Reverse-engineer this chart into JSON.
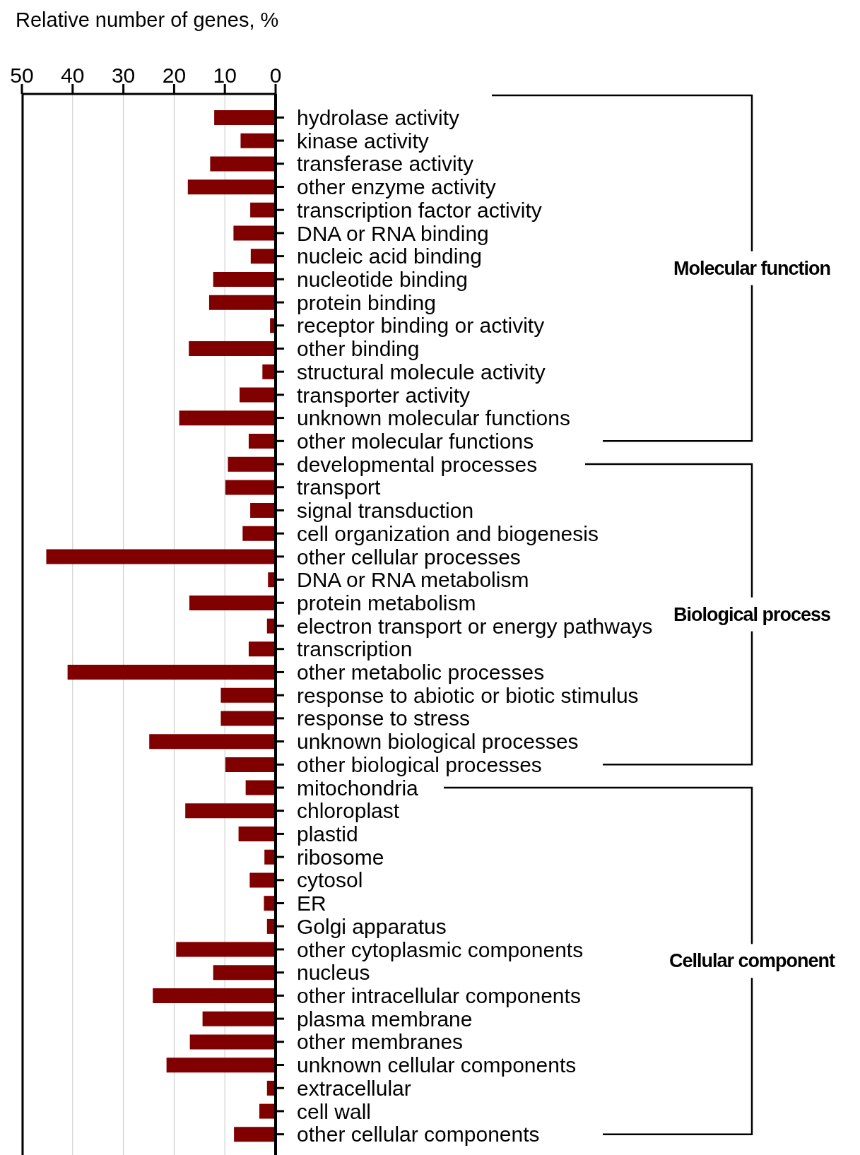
{
  "chart_data": {
    "type": "bar",
    "orientation": "horizontal",
    "xlabel": "Relative number of genes, %",
    "categories": [
      "hydrolase activity",
      "kinase activity",
      "transferase activity",
      "other enzyme activity",
      "transcription factor activity",
      "DNA or RNA binding",
      "nucleic acid binding",
      "nucleotide binding",
      "protein binding",
      "receptor binding or activity",
      "other binding",
      "structural molecule activity",
      "transporter activity",
      "unknown molecular functions",
      "other molecular functions",
      "developmental processes",
      "transport",
      "signal transduction",
      "cell organization and biogenesis",
      "other cellular processes",
      "DNA or RNA metabolism",
      "protein metabolism",
      "electron transport or energy pathways",
      "transcription",
      "other metabolic processes",
      "response to abiotic or biotic stimulus",
      "response to stress",
      "unknown biological processes",
      "other biological processes",
      "mitochondria",
      "chloroplast",
      "plastid",
      "ribosome",
      "cytosol",
      "ER",
      "Golgi apparatus",
      "other cytoplasmic components",
      "nucleus",
      "other intracellular components",
      "plasma membrane",
      "other membranes",
      "unknown cellular components",
      "extracellular",
      "cell wall",
      "other cellular components"
    ],
    "values": [
      12.1,
      6.9,
      12.9,
      17.3,
      5.0,
      8.3,
      4.9,
      12.3,
      13.1,
      1.1,
      17.1,
      2.6,
      7.1,
      19.0,
      5.3,
      9.4,
      9.9,
      5.0,
      6.5,
      45.2,
      1.5,
      17.0,
      1.7,
      5.3,
      41.0,
      10.8,
      10.8,
      24.9,
      9.9,
      5.9,
      17.8,
      7.3,
      2.2,
      5.1,
      2.3,
      1.7,
      19.6,
      12.3,
      24.2,
      14.4,
      16.9,
      21.5,
      1.7,
      3.2,
      8.2
    ],
    "color": "#800000",
    "xlim": [
      50,
      0
    ],
    "xticks": [
      50,
      40,
      30,
      20,
      10,
      0
    ],
    "grid": "x",
    "annotations": [
      "Molecular function",
      "Biological process",
      "Cellular component"
    ]
  }
}
